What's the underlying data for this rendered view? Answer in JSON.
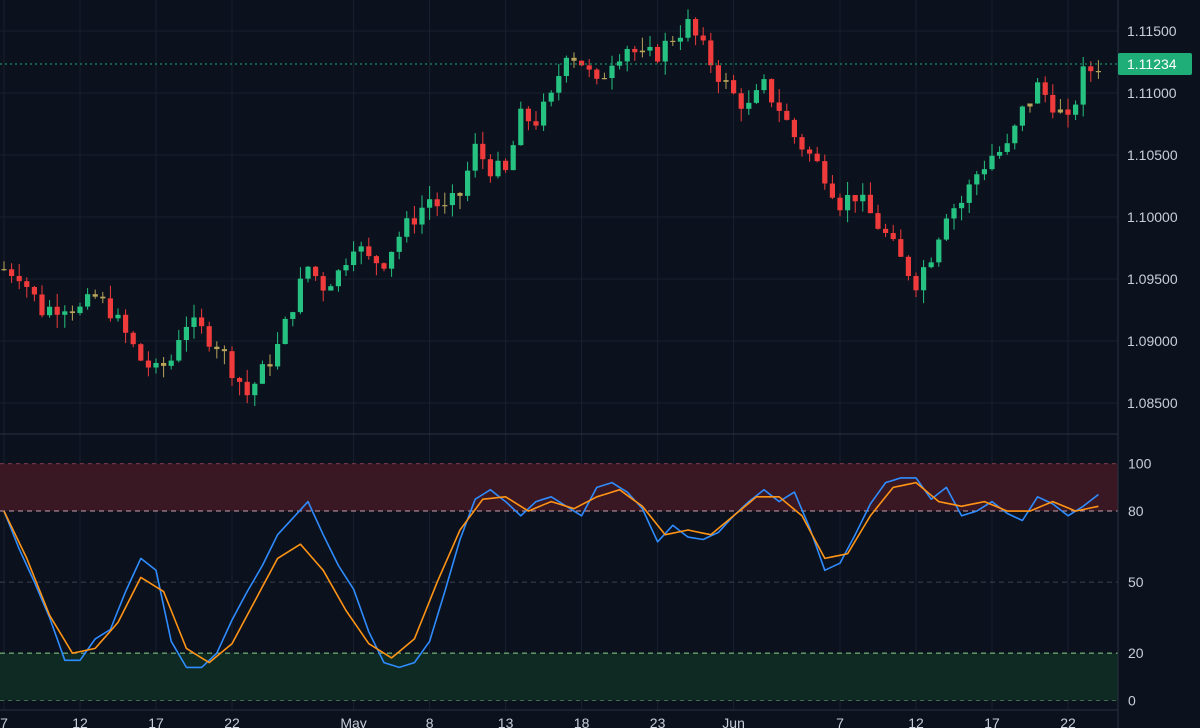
{
  "colors": {
    "background": "#0b111d",
    "grid": "#182130",
    "up": "#26c281",
    "down": "#ef3b3b",
    "neutral": "#b7a35a",
    "k_line": "#2f8cff",
    "d_line": "#ff9416",
    "overbought_fill": "#3a1823",
    "oversold_fill": "#0e2a22",
    "price_tag": "#1fae78"
  },
  "chart_data": [
    {
      "type": "candlestick",
      "title": "",
      "y_axis_ticks": [
        "1.11500",
        "1.11000",
        "1.10500",
        "1.10000",
        "1.09500",
        "1.09000",
        "1.08500"
      ],
      "y_tick_values": [
        1.115,
        1.11,
        1.105,
        1.1,
        1.095,
        1.09,
        1.085
      ],
      "ylim": [
        1.0825,
        1.1175
      ],
      "last_price": 1.11234,
      "last_price_label": "1.11234",
      "x_axis_ticks": [
        "7",
        "12",
        "17",
        "22",
        "May",
        "8",
        "13",
        "18",
        "23",
        "Jun",
        "7",
        "12",
        "17",
        "22"
      ],
      "x_tick_index": [
        0,
        10,
        20,
        30,
        46,
        56,
        66,
        76,
        86,
        96,
        110,
        120,
        130,
        140
      ],
      "close_points": [
        [
          0,
          1.0958
        ],
        [
          2,
          1.0955
        ],
        [
          4,
          1.0935
        ],
        [
          5,
          1.0925
        ],
        [
          8,
          1.093
        ],
        [
          10,
          1.0925
        ],
        [
          12,
          1.0935
        ],
        [
          14,
          1.0925
        ],
        [
          16,
          1.0905
        ],
        [
          18,
          1.0885
        ],
        [
          20,
          1.0875
        ],
        [
          22,
          1.0885
        ],
        [
          23,
          1.0905
        ],
        [
          24,
          1.0915
        ],
        [
          26,
          1.0908
        ],
        [
          28,
          1.0898
        ],
        [
          30,
          1.0878
        ],
        [
          31,
          1.0868
        ],
        [
          32,
          1.0857
        ],
        [
          34,
          1.0875
        ],
        [
          36,
          1.0895
        ],
        [
          38,
          1.093
        ],
        [
          40,
          1.096
        ],
        [
          42,
          1.0945
        ],
        [
          44,
          1.0955
        ],
        [
          46,
          1.098
        ],
        [
          48,
          1.0965
        ],
        [
          50,
          1.0965
        ],
        [
          52,
          1.0985
        ],
        [
          56,
          1.1015
        ],
        [
          58,
          1.1005
        ],
        [
          60,
          1.1018
        ],
        [
          62,
          1.1055
        ],
        [
          64,
          1.104
        ],
        [
          66,
          1.1035
        ],
        [
          68,
          1.108
        ],
        [
          70,
          1.1078
        ],
        [
          72,
          1.1095
        ],
        [
          74,
          1.1135
        ],
        [
          76,
          1.1125
        ],
        [
          78,
          1.1105
        ],
        [
          80,
          1.1128
        ],
        [
          82,
          1.1138
        ],
        [
          84,
          1.1128
        ],
        [
          86,
          1.1132
        ],
        [
          88,
          1.1145
        ],
        [
          90,
          1.1155
        ],
        [
          92,
          1.1135
        ],
        [
          94,
          1.1115
        ],
        [
          96,
          1.1098
        ],
        [
          98,
          1.1088
        ],
        [
          100,
          1.1105
        ],
        [
          102,
          1.1088
        ],
        [
          104,
          1.1065
        ],
        [
          106,
          1.105
        ],
        [
          108,
          1.1035
        ],
        [
          110,
          1.1012
        ],
        [
          112,
          1.1018
        ],
        [
          114,
          1.1002
        ],
        [
          116,
          1.0985
        ],
        [
          118,
          1.0965
        ],
        [
          120,
          1.0948
        ],
        [
          122,
          1.097
        ],
        [
          124,
          1.1005
        ],
        [
          126,
          1.1012
        ],
        [
          128,
          1.1035
        ],
        [
          130,
          1.105
        ],
        [
          132,
          1.1055
        ],
        [
          134,
          1.1085
        ],
        [
          136,
          1.1105
        ],
        [
          138,
          1.1092
        ],
        [
          140,
          1.1075
        ],
        [
          142,
          1.1115
        ],
        [
          144,
          1.1123
        ]
      ]
    },
    {
      "type": "line",
      "title": "",
      "y_axis_ticks": [
        "100",
        "80",
        "50",
        "20",
        "0"
      ],
      "y_tick_values": [
        100,
        80,
        50,
        20,
        0
      ],
      "ylim": [
        -4,
        110
      ],
      "bands": {
        "overbought": [
          80,
          100
        ],
        "oversold": [
          0,
          20
        ]
      },
      "series": [
        {
          "name": "",
          "color": "#2f8cff",
          "points": [
            [
              0,
              80
            ],
            [
              2,
              64
            ],
            [
              4,
              50
            ],
            [
              6,
              35
            ],
            [
              8,
              17
            ],
            [
              10,
              17
            ],
            [
              12,
              26
            ],
            [
              14,
              30
            ],
            [
              16,
              46
            ],
            [
              18,
              60
            ],
            [
              20,
              55
            ],
            [
              22,
              25
            ],
            [
              24,
              14
            ],
            [
              26,
              14
            ],
            [
              28,
              20
            ],
            [
              30,
              34
            ],
            [
              32,
              46
            ],
            [
              34,
              57
            ],
            [
              36,
              70
            ],
            [
              38,
              77
            ],
            [
              40,
              84
            ],
            [
              42,
              70
            ],
            [
              44,
              57
            ],
            [
              46,
              47
            ],
            [
              48,
              29
            ],
            [
              50,
              16
            ],
            [
              52,
              14
            ],
            [
              54,
              16
            ],
            [
              56,
              25
            ],
            [
              58,
              46
            ],
            [
              60,
              68
            ],
            [
              62,
              85
            ],
            [
              64,
              89
            ],
            [
              66,
              84
            ],
            [
              68,
              78
            ],
            [
              70,
              84
            ],
            [
              72,
              86
            ],
            [
              74,
              82
            ],
            [
              76,
              78
            ],
            [
              78,
              90
            ],
            [
              80,
              92
            ],
            [
              82,
              88
            ],
            [
              84,
              81
            ],
            [
              86,
              67
            ],
            [
              88,
              74
            ],
            [
              90,
              69
            ],
            [
              92,
              68
            ],
            [
              94,
              71
            ],
            [
              96,
              78
            ],
            [
              98,
              84
            ],
            [
              100,
              89
            ],
            [
              102,
              84
            ],
            [
              104,
              88
            ],
            [
              106,
              73
            ],
            [
              108,
              55
            ],
            [
              110,
              58
            ],
            [
              112,
              70
            ],
            [
              114,
              83
            ],
            [
              116,
              92
            ],
            [
              118,
              94
            ],
            [
              120,
              94
            ],
            [
              122,
              85
            ],
            [
              124,
              90
            ],
            [
              126,
              78
            ],
            [
              128,
              80
            ],
            [
              130,
              84
            ],
            [
              132,
              79
            ],
            [
              134,
              76
            ],
            [
              136,
              86
            ],
            [
              138,
              83
            ],
            [
              140,
              78
            ],
            [
              142,
              82
            ],
            [
              144,
              87
            ]
          ]
        },
        {
          "name": "",
          "color": "#ff9416",
          "points": [
            [
              0,
              80
            ],
            [
              3,
              60
            ],
            [
              6,
              36
            ],
            [
              9,
              20
            ],
            [
              12,
              22
            ],
            [
              15,
              33
            ],
            [
              18,
              52
            ],
            [
              21,
              46
            ],
            [
              24,
              22
            ],
            [
              27,
              16
            ],
            [
              30,
              24
            ],
            [
              33,
              42
            ],
            [
              36,
              60
            ],
            [
              39,
              66
            ],
            [
              42,
              55
            ],
            [
              45,
              38
            ],
            [
              48,
              24
            ],
            [
              51,
              18
            ],
            [
              54,
              26
            ],
            [
              57,
              50
            ],
            [
              60,
              72
            ],
            [
              63,
              85
            ],
            [
              66,
              86
            ],
            [
              69,
              80
            ],
            [
              72,
              84
            ],
            [
              75,
              81
            ],
            [
              78,
              86
            ],
            [
              81,
              89
            ],
            [
              84,
              82
            ],
            [
              87,
              70
            ],
            [
              90,
              72
            ],
            [
              93,
              70
            ],
            [
              96,
              78
            ],
            [
              99,
              86
            ],
            [
              102,
              86
            ],
            [
              105,
              78
            ],
            [
              108,
              60
            ],
            [
              111,
              62
            ],
            [
              114,
              78
            ],
            [
              117,
              90
            ],
            [
              120,
              92
            ],
            [
              123,
              84
            ],
            [
              126,
              82
            ],
            [
              129,
              84
            ],
            [
              132,
              80
            ],
            [
              135,
              80
            ],
            [
              138,
              84
            ],
            [
              141,
              80
            ],
            [
              144,
              82
            ]
          ]
        }
      ]
    }
  ]
}
